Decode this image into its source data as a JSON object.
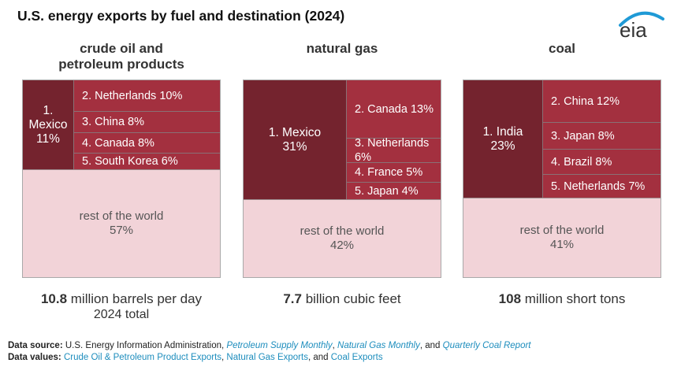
{
  "title": "U.S. energy exports by fuel and destination (2024)",
  "logo": {
    "text": "eia",
    "arc_color": "#1f9ad6"
  },
  "colors": {
    "top": "#74232e",
    "others": "#a3303f",
    "rest": "#f2d3d8"
  },
  "chart_data": {
    "type": "treemap",
    "title": "U.S. energy exports by fuel and destination (2024)",
    "panels": [
      {
        "title_lines": [
          "crude oil and",
          "petroleum products"
        ],
        "items": [
          {
            "rank": 1,
            "name": "Mexico",
            "share": 11,
            "label_lines": [
              "1.",
              "Mexico",
              "11%"
            ]
          },
          {
            "rank": 2,
            "name": "Netherlands",
            "share": 10,
            "label": "2. Netherlands 10%"
          },
          {
            "rank": 3,
            "name": "China",
            "share": 8,
            "label": "3. China 8%"
          },
          {
            "rank": 4,
            "name": "Canada",
            "share": 8,
            "label": "4. Canada 8%"
          },
          {
            "rank": 5,
            "name": "South Korea",
            "share": 6,
            "label": "5. South Korea 6%"
          }
        ],
        "rest": {
          "name": "rest of the world",
          "share": 57,
          "label_lines": [
            "rest of the world",
            "57%"
          ]
        },
        "total": {
          "value": "10.8",
          "unit": " million barrels per day",
          "sub": "2024 total"
        }
      },
      {
        "title_lines": [
          "natural gas"
        ],
        "items": [
          {
            "rank": 1,
            "name": "Mexico",
            "share": 31,
            "label_lines": [
              "1. Mexico",
              "31%"
            ]
          },
          {
            "rank": 2,
            "name": "Canada",
            "share": 13,
            "label": "2. Canada 13%"
          },
          {
            "rank": 3,
            "name": "Netherlands",
            "share": 6,
            "label": "3. Netherlands 6%"
          },
          {
            "rank": 4,
            "name": "France",
            "share": 5,
            "label": "4. France 5%"
          },
          {
            "rank": 5,
            "name": "Japan",
            "share": 4,
            "label": "5. Japan 4%"
          }
        ],
        "rest": {
          "name": "rest of the world",
          "share": 42,
          "label_lines": [
            "rest of the world",
            "42%"
          ]
        },
        "total": {
          "value": "7.7",
          "unit": " billion cubic feet",
          "sub": ""
        }
      },
      {
        "title_lines": [
          "coal"
        ],
        "items": [
          {
            "rank": 1,
            "name": "India",
            "share": 23,
            "label_lines": [
              "1. India",
              "23%"
            ]
          },
          {
            "rank": 2,
            "name": "China",
            "share": 12,
            "label": "2. China 12%"
          },
          {
            "rank": 3,
            "name": "Japan",
            "share": 8,
            "label": "3. Japan 8%"
          },
          {
            "rank": 4,
            "name": "Brazil",
            "share": 8,
            "label": "4. Brazil 8%"
          },
          {
            "rank": 5,
            "name": "Netherlands",
            "share": 7,
            "label": "5. Netherlands 7%"
          }
        ],
        "rest": {
          "name": "rest of the world",
          "share": 41,
          "label_lines": [
            "rest of the world",
            "41%"
          ]
        },
        "total": {
          "value": "108",
          "unit": " million short tons",
          "sub": ""
        }
      }
    ]
  },
  "footer": {
    "source_label": "Data source:",
    "source_text": " U.S. Energy Information Administration, ",
    "source_links": [
      "Petroleum Supply Monthly",
      "Natural Gas Monthly",
      "Quarterly Coal Report"
    ],
    "sep1": ", ",
    "sep2": ", and ",
    "values_label": "Data values:",
    "values_links": [
      "Crude Oil & Petroleum Product Exports",
      "Natural Gas Exports",
      "Coal Exports"
    ]
  }
}
